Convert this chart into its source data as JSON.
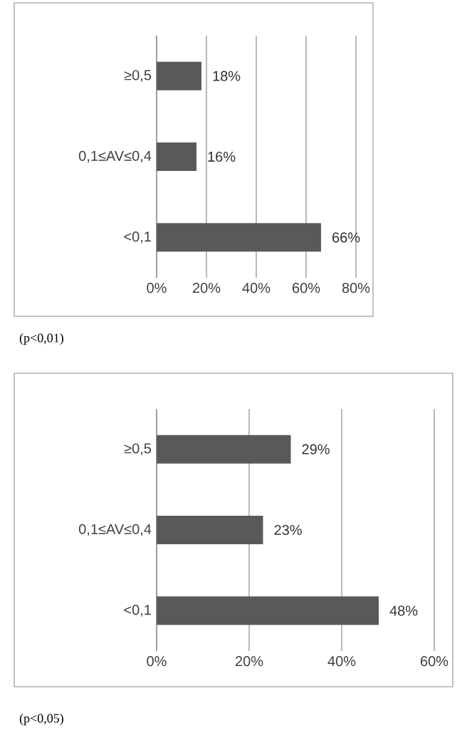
{
  "chart_data": [
    {
      "type": "bar",
      "orientation": "horizontal",
      "categories": [
        "≥0,5",
        "0,1≤AV≤0,4",
        "<0,1"
      ],
      "values": [
        18,
        16,
        66
      ],
      "value_labels": [
        "18%",
        "16%",
        "66%"
      ],
      "color": "#595959",
      "xlim": [
        0,
        80
      ],
      "xticks": [
        {
          "value": 0,
          "label": "0%"
        },
        {
          "value": 20,
          "label": "20%"
        },
        {
          "value": 40,
          "label": "40%"
        },
        {
          "value": 60,
          "label": "60%"
        },
        {
          "value": 80,
          "label": "80%"
        }
      ],
      "grid": "x",
      "annotations": [
        "(p<0,01)"
      ]
    },
    {
      "type": "bar",
      "orientation": "horizontal",
      "categories": [
        "≥0,5",
        "0,1≤AV≤0,4",
        "<0,1"
      ],
      "values": [
        29,
        23,
        48
      ],
      "value_labels": [
        "29%",
        "23%",
        "48%"
      ],
      "color": "#595959",
      "xlim": [
        0,
        60
      ],
      "xticks": [
        {
          "value": 0,
          "label": "0%"
        },
        {
          "value": 20,
          "label": "20%"
        },
        {
          "value": 40,
          "label": "40%"
        },
        {
          "value": 60,
          "label": "60%"
        }
      ],
      "grid": "x",
      "annotations": [
        "(p<0,05)"
      ]
    }
  ]
}
